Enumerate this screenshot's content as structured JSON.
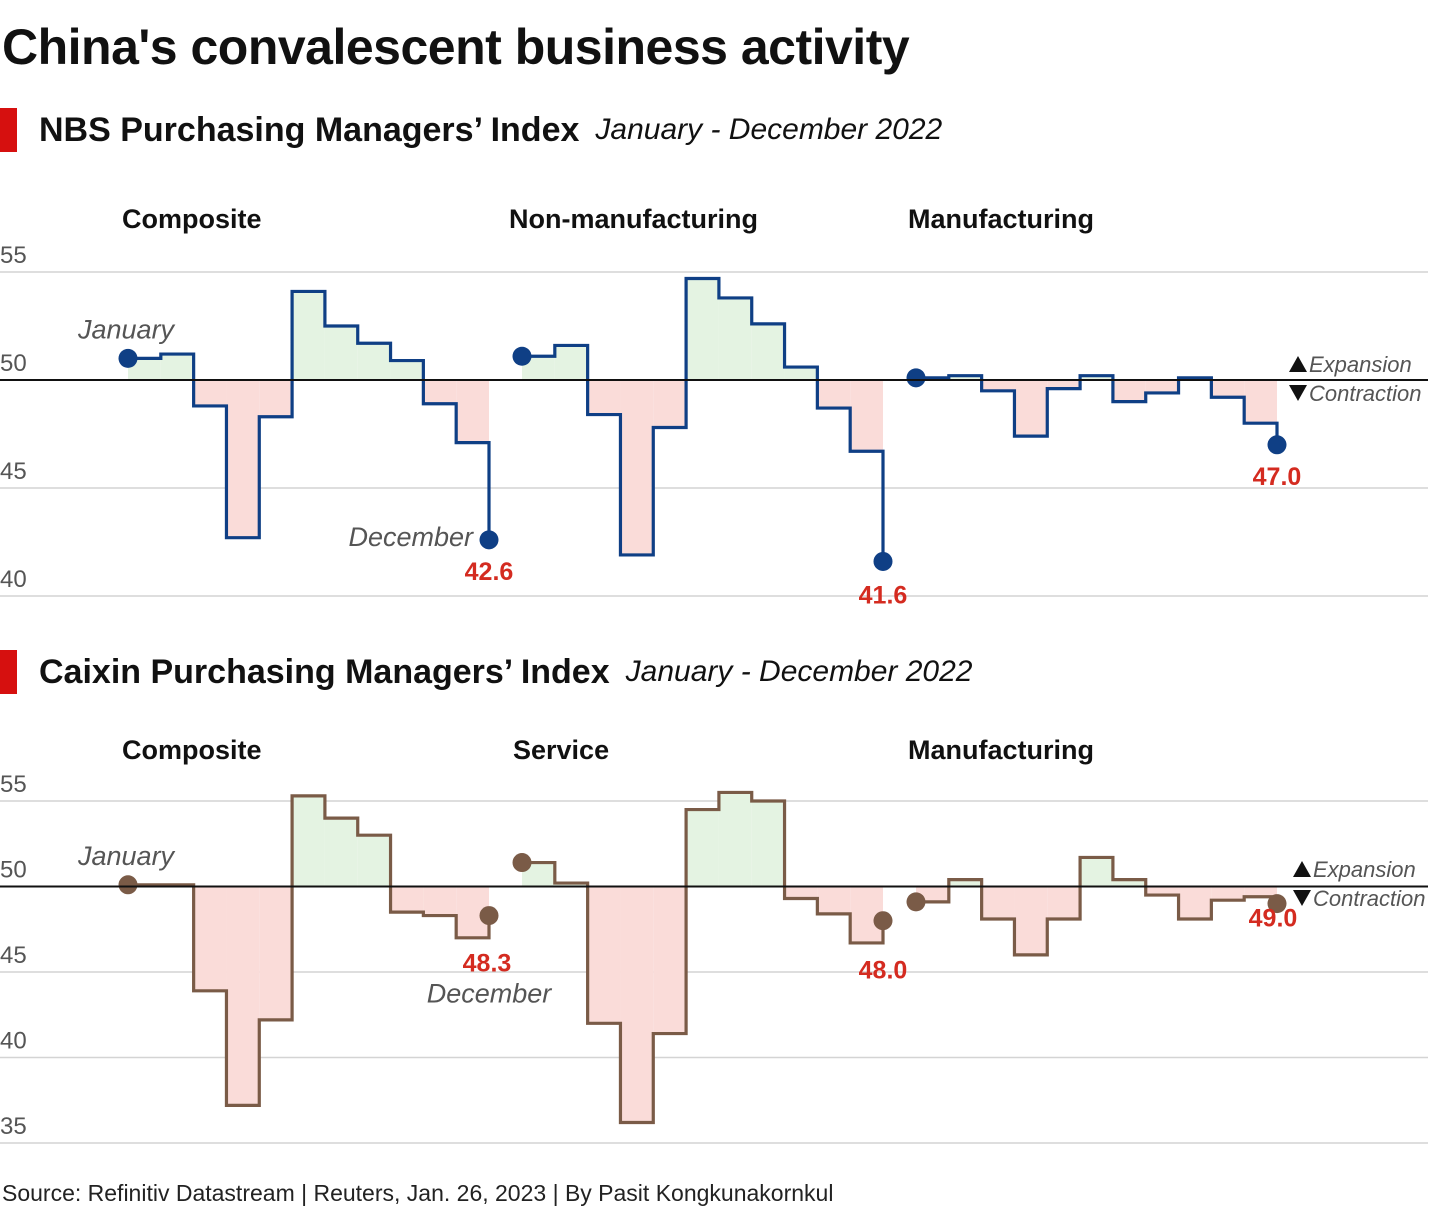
{
  "title": "China's convalescent business activity",
  "source": "Source: Refinitiv Datastream | Reuters, Jan. 26, 2023 | By Pasit Kongkunakornkul",
  "colors": {
    "accent": "#d6100f",
    "nbs_line": "#0f3f85",
    "caixin_line": "#7a5b47",
    "expansion_fill": "#e4f3e2",
    "contraction_fill": "#fadcd9",
    "label_red": "#d42b20"
  },
  "legend": {
    "expansion": "Expansion",
    "contraction": "Contraction"
  },
  "chart_data": [
    {
      "type": "line",
      "title": "NBS Purchasing Managers’ Index",
      "subtitle": "January - December 2022",
      "y_ticks": [
        "55",
        "50",
        "45",
        "40"
      ],
      "ylim": [
        40,
        55
      ],
      "baseline": 50,
      "series": [
        {
          "name": "Composite",
          "start_label": "January",
          "end_label": "December",
          "end_value_label": "42.6",
          "values": [
            51.0,
            51.2,
            48.8,
            42.7,
            48.3,
            54.1,
            52.5,
            51.7,
            50.9,
            48.9,
            47.1,
            42.6
          ]
        },
        {
          "name": "Non-manufacturing",
          "end_value_label": "41.6",
          "values": [
            51.1,
            51.6,
            48.4,
            41.9,
            47.8,
            54.7,
            53.8,
            52.6,
            50.6,
            48.7,
            46.7,
            41.6
          ]
        },
        {
          "name": "Manufacturing",
          "end_value_label": "47.0",
          "values": [
            50.1,
            50.2,
            49.5,
            47.4,
            49.6,
            50.2,
            49.0,
            49.4,
            50.1,
            49.2,
            48.0,
            47.0
          ]
        }
      ]
    },
    {
      "type": "line",
      "title": "Caixin Purchasing Managers’ Index",
      "subtitle": "January - December 2022",
      "y_ticks": [
        "55",
        "50",
        "45",
        "40",
        "35"
      ],
      "ylim": [
        35,
        55
      ],
      "baseline": 50,
      "series": [
        {
          "name": "Composite",
          "start_label": "January",
          "end_label": "December",
          "end_value_label": "48.3",
          "values": [
            50.1,
            50.1,
            43.9,
            37.2,
            42.2,
            55.3,
            54.0,
            53.0,
            48.5,
            48.3,
            47.0,
            48.3
          ]
        },
        {
          "name": "Service",
          "end_value_label": "48.0",
          "values": [
            51.4,
            50.2,
            42.0,
            36.2,
            41.4,
            54.5,
            55.5,
            55.0,
            49.3,
            48.4,
            46.7,
            48.0
          ]
        },
        {
          "name": "Manufacturing",
          "end_value_label": "49.0",
          "values": [
            49.1,
            50.4,
            48.1,
            46.0,
            48.1,
            51.7,
            50.4,
            49.5,
            48.1,
            49.2,
            49.4,
            49.0
          ]
        }
      ]
    }
  ]
}
